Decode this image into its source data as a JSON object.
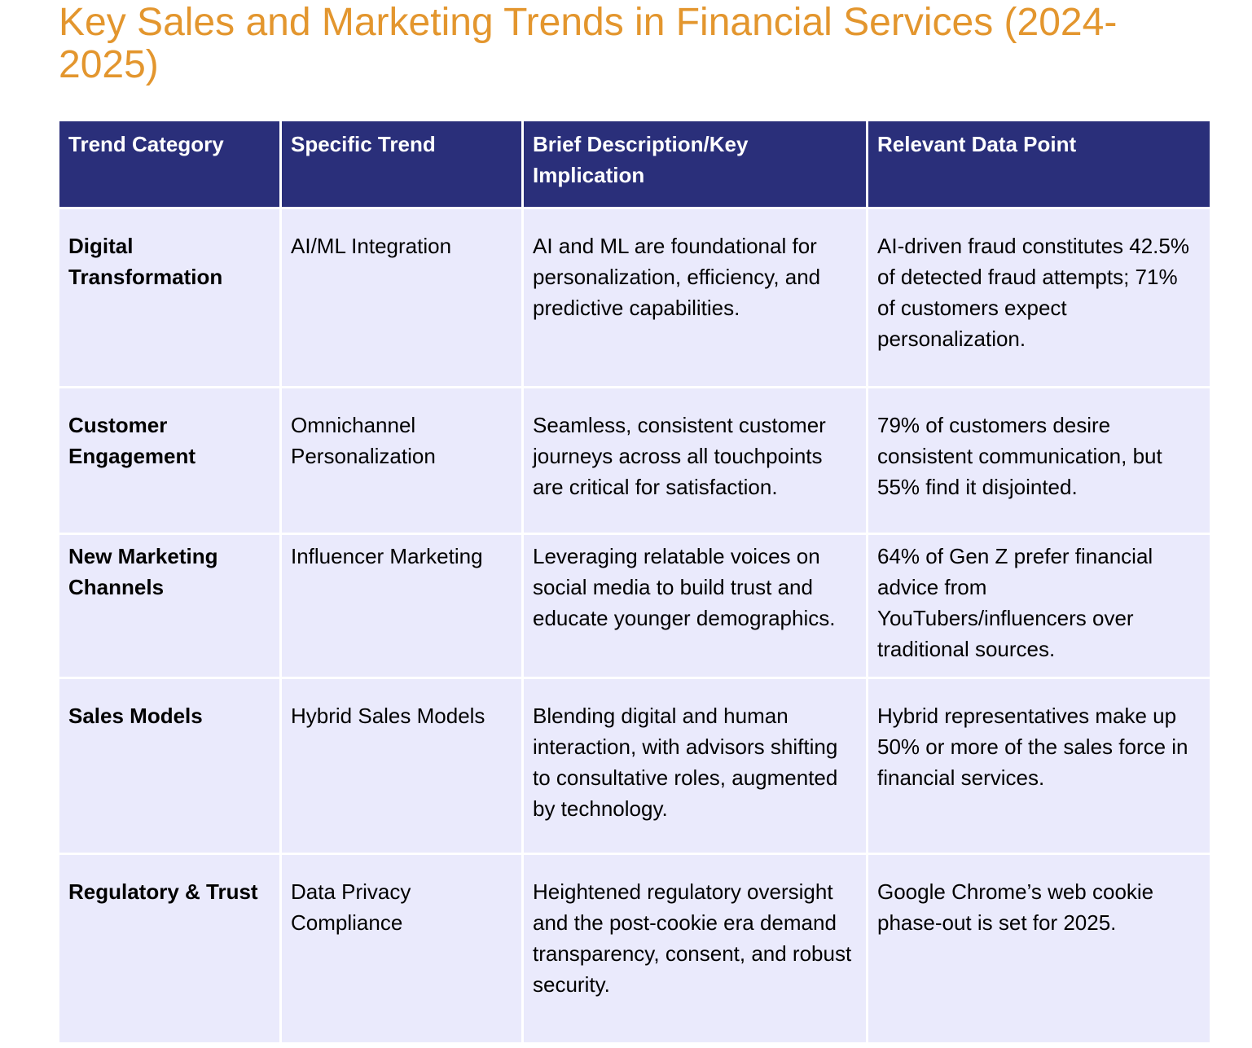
{
  "title": "Key Sales and Marketing Trends in Financial Services (2024-2025)",
  "table": {
    "headers": [
      "Trend Category",
      "Specific Trend",
      "Brief Description/Key Implication",
      "Relevant Data Point"
    ],
    "rows": [
      {
        "category": "Digital Transformation",
        "trend": "AI/ML Integration",
        "description": "AI and ML are foundational for personalization, efficiency, and predictive capabilities.",
        "data_point": "AI-driven fraud constitutes 42.5% of detected fraud attempts; 71% of customers expect personalization."
      },
      {
        "category": "Customer Engagement",
        "trend": "Omnichannel Personalization",
        "description": "Seamless, consistent customer journeys across all touchpoints are critical for satisfaction.",
        "data_point": "79% of customers desire consistent communication, but 55% find it disjointed."
      },
      {
        "category": "New Marketing Channels",
        "trend": "Influencer Marketing",
        "description": "Leveraging relatable voices on social media to build trust and educate younger demographics.",
        "data_point": "64% of Gen Z prefer financial advice from YouTubers/influencers over traditional sources."
      },
      {
        "category": "Sales Models",
        "trend": "Hybrid Sales Models",
        "description": "Blending digital and human interaction, with advisors shifting to consultative roles, augmented by technology.",
        "data_point": "Hybrid representatives make up 50% or more of the sales force in financial services."
      },
      {
        "category": "Regulatory & Trust",
        "trend": "Data Privacy Compliance",
        "description": "Heightened regulatory oversight and the post-cookie era demand transparency, consent, and robust security.",
        "data_point": "Google Chrome’s web cookie phase-out is set for 2025."
      }
    ]
  },
  "colors": {
    "title": "#e3962e",
    "header_bg": "#2a2f7a",
    "cell_bg": "#eaeafc"
  }
}
